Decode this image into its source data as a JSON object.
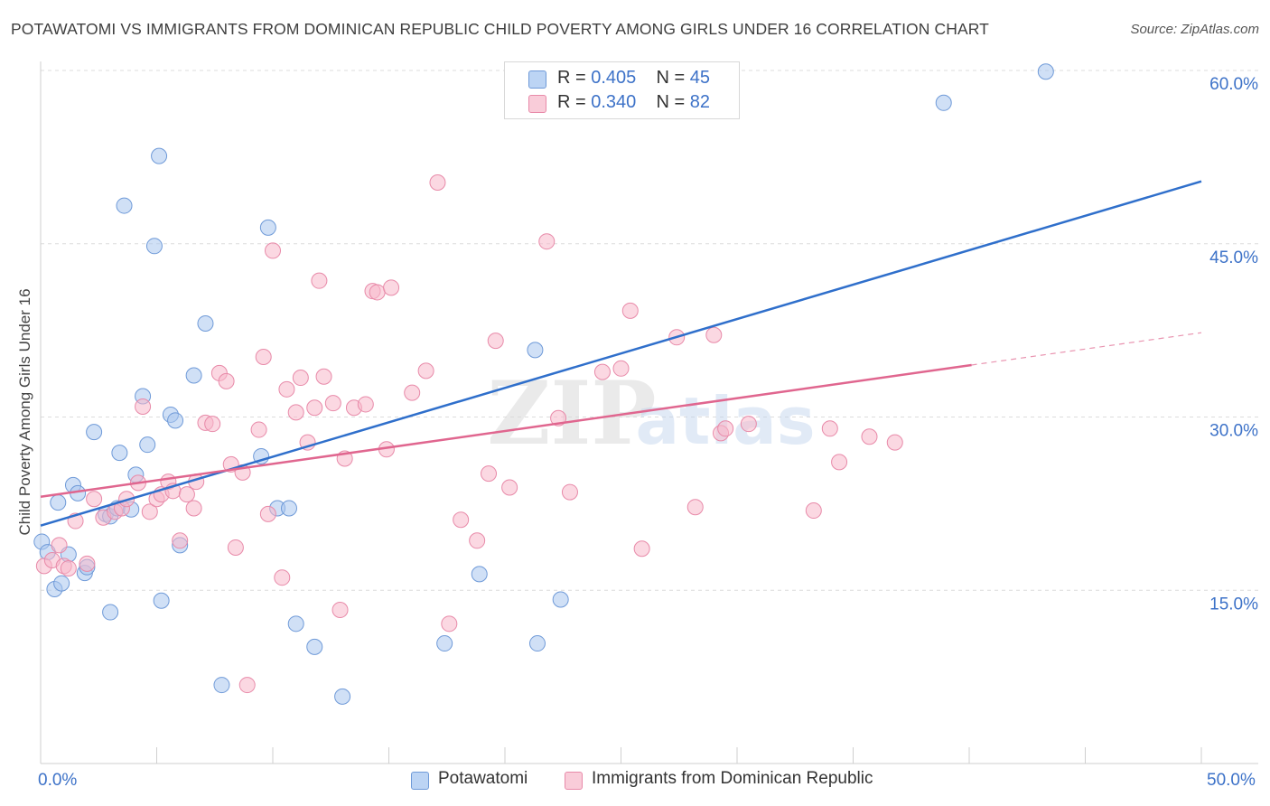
{
  "header": {
    "title": "POTAWATOMI VS IMMIGRANTS FROM DOMINICAN REPUBLIC CHILD POVERTY AMONG GIRLS UNDER 16 CORRELATION CHART",
    "source": "Source: ZipAtlas.com"
  },
  "legend": {
    "series1": {
      "r_label": "R = ",
      "r_value": "0.405",
      "n_label": "N = ",
      "n_value": "45"
    },
    "series2": {
      "r_label": "R = ",
      "r_value": "0.340",
      "n_label": "N = ",
      "n_value": "82"
    }
  },
  "bottom_legend": {
    "series1": "Potawatomi",
    "series2": "Immigrants from Dominican Republic"
  },
  "watermark": {
    "zip": "ZIP",
    "atlas": "atlas"
  },
  "colors": {
    "blue_fill": "#a9c6ef",
    "blue_stroke": "#6f9ad8",
    "blue_line": "#2f6fcb",
    "pink_fill": "#f7b8cb",
    "pink_stroke": "#e88aa9",
    "pink_line": "#e0668f",
    "axis_label": "#3d72c8",
    "grid": "#dcdcdc"
  },
  "chart_data": {
    "type": "scatter",
    "title": "POTAWATOMI VS IMMIGRANTS FROM DOMINICAN REPUBLIC CHILD POVERTY AMONG GIRLS UNDER 16 CORRELATION CHART",
    "xlabel": "",
    "ylabel": "Child Poverty Among Girls Under 16",
    "xlim": [
      0,
      50
    ],
    "ylim": [
      0,
      60
    ],
    "x_tick_labels": [
      "0.0%",
      "50.0%"
    ],
    "y_ticks": [
      15,
      30,
      45,
      60
    ],
    "y_tick_labels": [
      "15.0%",
      "30.0%",
      "45.0%",
      "60.0%"
    ],
    "grid": true,
    "legend": "top-center",
    "series": [
      {
        "name": "Potawatomi",
        "r": 0.405,
        "n": 45,
        "trend": {
          "x": [
            0,
            50
          ],
          "y": [
            20.6,
            50.4
          ]
        },
        "points": [
          [
            0.05,
            19.2
          ],
          [
            0.3,
            18.3
          ],
          [
            0.6,
            15.1
          ],
          [
            0.75,
            22.6
          ],
          [
            0.9,
            15.6
          ],
          [
            1.2,
            18.1
          ],
          [
            1.4,
            24.1
          ],
          [
            1.6,
            23.4
          ],
          [
            1.9,
            16.5
          ],
          [
            2.0,
            17.0
          ],
          [
            2.3,
            28.7
          ],
          [
            2.8,
            21.6
          ],
          [
            3.0,
            21.4
          ],
          [
            3.3,
            22.1
          ],
          [
            3.0,
            13.1
          ],
          [
            3.4,
            26.9
          ],
          [
            3.6,
            48.3
          ],
          [
            3.9,
            22.0
          ],
          [
            4.1,
            25.0
          ],
          [
            4.4,
            31.8
          ],
          [
            4.6,
            27.6
          ],
          [
            4.9,
            44.8
          ],
          [
            5.1,
            52.6
          ],
          [
            5.2,
            14.1
          ],
          [
            5.6,
            30.2
          ],
          [
            5.8,
            29.7
          ],
          [
            6.0,
            18.9
          ],
          [
            6.6,
            33.6
          ],
          [
            7.1,
            38.1
          ],
          [
            7.8,
            6.8
          ],
          [
            9.5,
            26.6
          ],
          [
            9.8,
            46.4
          ],
          [
            10.2,
            22.1
          ],
          [
            10.7,
            22.1
          ],
          [
            11.0,
            12.1
          ],
          [
            11.8,
            10.1
          ],
          [
            13.0,
            5.8
          ],
          [
            17.4,
            10.4
          ],
          [
            18.9,
            16.4
          ],
          [
            21.3,
            35.8
          ],
          [
            21.4,
            10.4
          ],
          [
            22.4,
            14.2
          ],
          [
            38.9,
            57.2
          ],
          [
            43.3,
            59.9
          ]
        ]
      },
      {
        "name": "Immigrants from Dominican Republic",
        "r": 0.34,
        "n": 82,
        "trend": {
          "x": [
            0,
            40.1
          ],
          "y": [
            23.1,
            34.5
          ]
        },
        "trend_dashed": {
          "x": [
            40.1,
            50
          ],
          "y": [
            34.5,
            37.3
          ]
        },
        "points": [
          [
            0.15,
            17.1
          ],
          [
            0.5,
            17.6
          ],
          [
            0.8,
            18.9
          ],
          [
            1.0,
            17.1
          ],
          [
            1.2,
            16.9
          ],
          [
            1.5,
            21.0
          ],
          [
            2.0,
            17.3
          ],
          [
            2.3,
            22.9
          ],
          [
            2.7,
            21.3
          ],
          [
            3.2,
            21.8
          ],
          [
            3.5,
            22.1
          ],
          [
            3.7,
            22.9
          ],
          [
            4.2,
            24.3
          ],
          [
            4.4,
            30.9
          ],
          [
            4.7,
            21.8
          ],
          [
            5.0,
            22.9
          ],
          [
            5.2,
            23.3
          ],
          [
            5.5,
            24.4
          ],
          [
            5.7,
            23.6
          ],
          [
            6.0,
            19.3
          ],
          [
            6.3,
            23.3
          ],
          [
            6.6,
            22.1
          ],
          [
            6.7,
            24.4
          ],
          [
            7.1,
            29.5
          ],
          [
            7.4,
            29.4
          ],
          [
            7.7,
            33.8
          ],
          [
            8.0,
            33.1
          ],
          [
            8.2,
            25.9
          ],
          [
            8.4,
            18.7
          ],
          [
            8.7,
            25.2
          ],
          [
            9.4,
            28.9
          ],
          [
            9.6,
            35.2
          ],
          [
            9.8,
            21.6
          ],
          [
            10.0,
            44.4
          ],
          [
            10.4,
            16.1
          ],
          [
            10.6,
            32.4
          ],
          [
            11.0,
            30.4
          ],
          [
            11.2,
            33.4
          ],
          [
            11.5,
            27.8
          ],
          [
            11.8,
            30.8
          ],
          [
            12.0,
            41.8
          ],
          [
            12.2,
            33.5
          ],
          [
            12.6,
            31.2
          ],
          [
            12.9,
            13.3
          ],
          [
            13.1,
            26.4
          ],
          [
            13.5,
            30.8
          ],
          [
            14.0,
            31.1
          ],
          [
            14.3,
            40.9
          ],
          [
            14.5,
            40.8
          ],
          [
            14.9,
            27.2
          ],
          [
            15.1,
            41.2
          ],
          [
            16.0,
            32.1
          ],
          [
            16.6,
            34.0
          ],
          [
            17.1,
            50.3
          ],
          [
            17.6,
            12.1
          ],
          [
            18.1,
            21.1
          ],
          [
            18.8,
            19.3
          ],
          [
            19.3,
            25.1
          ],
          [
            19.6,
            36.6
          ],
          [
            20.2,
            23.9
          ],
          [
            21.8,
            45.2
          ],
          [
            22.3,
            29.9
          ],
          [
            22.8,
            23.5
          ],
          [
            24.2,
            33.9
          ],
          [
            25.0,
            34.2
          ],
          [
            25.4,
            39.2
          ],
          [
            25.9,
            18.6
          ],
          [
            27.4,
            36.9
          ],
          [
            28.2,
            22.2
          ],
          [
            29.0,
            37.1
          ],
          [
            29.3,
            28.6
          ],
          [
            29.5,
            29.0
          ],
          [
            30.5,
            29.4
          ],
          [
            33.3,
            21.9
          ],
          [
            34.0,
            29.0
          ],
          [
            34.4,
            26.1
          ],
          [
            35.7,
            28.3
          ],
          [
            36.8,
            27.8
          ],
          [
            8.9,
            6.8
          ]
        ]
      }
    ]
  }
}
